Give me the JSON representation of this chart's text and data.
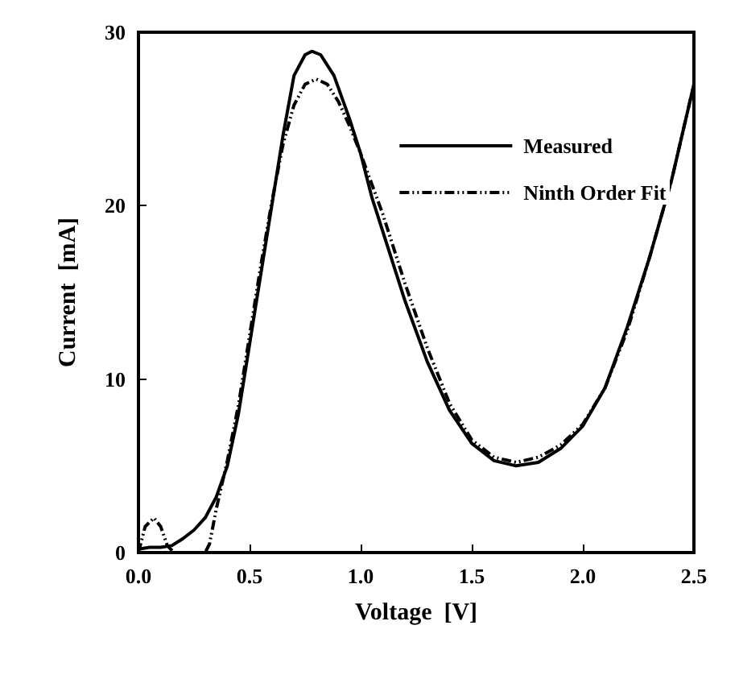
{
  "chart_data": {
    "type": "line",
    "xlabel": "Voltage  [V]",
    "ylabel": "Current  [mA]",
    "xlim": [
      0,
      2.5
    ],
    "xticks": [
      {
        "value": 0,
        "label": "0.0"
      },
      0.5,
      {
        "value": 1,
        "label": "1.0"
      },
      1.5,
      {
        "value": 2,
        "label": "2.0"
      },
      2.5
    ],
    "ylim": [
      0,
      30
    ],
    "yticks": [
      0,
      10,
      20,
      30
    ],
    "grid": false,
    "legend": "top right",
    "marker": "none",
    "series": [
      {
        "name": "Measured",
        "color": "#000000",
        "line_style": "solid",
        "x": [
          0,
          0.05,
          0.1,
          0.15,
          0.2,
          0.25,
          0.3,
          0.35,
          0.4,
          0.45,
          0.5,
          0.55,
          0.6,
          0.65,
          0.7,
          0.75,
          0.78,
          0.82,
          0.88,
          0.95,
          1.0,
          1.05,
          1.1,
          1.2,
          1.3,
          1.4,
          1.5,
          1.6,
          1.7,
          1.8,
          1.9,
          2.0,
          2.1,
          2.2,
          2.3,
          2.4,
          2.5
        ],
        "values": [
          0.2,
          0.3,
          0.3,
          0.4,
          0.8,
          1.3,
          2.0,
          3.2,
          5,
          8,
          12,
          16,
          20,
          24,
          27.5,
          28.7,
          28.9,
          28.7,
          27.5,
          25,
          23,
          20.5,
          18.5,
          14.5,
          11,
          8.2,
          6.3,
          5.3,
          5.0,
          5.2,
          6,
          7.3,
          9.5,
          13,
          17,
          21.5,
          27
        ]
      },
      {
        "name": "Ninth Order Fit",
        "color": "#000000",
        "line_style": "dashed",
        "x": [
          0,
          0.03,
          0.07,
          0.1,
          0.13,
          0.16,
          0.3,
          0.32,
          0.35,
          0.4,
          0.45,
          0.5,
          0.55,
          0.6,
          0.65,
          0.7,
          0.75,
          0.8,
          0.85,
          0.9,
          0.95,
          1.0,
          1.1,
          1.2,
          1.3,
          1.4,
          1.5,
          1.6,
          1.7,
          1.8,
          1.9,
          2.0,
          2.1,
          2.2,
          2.3,
          2.4,
          2.5
        ],
        "values": [
          0,
          1.5,
          2.0,
          1.5,
          0.4,
          0,
          0,
          0.5,
          2.5,
          5.3,
          8.5,
          12.5,
          16.5,
          20.2,
          23.5,
          25.8,
          27,
          27.3,
          27,
          26,
          24.6,
          23,
          19.5,
          15.5,
          11.8,
          8.6,
          6.5,
          5.5,
          5.2,
          5.5,
          6.2,
          7.4,
          9.5,
          12.8,
          17,
          21.5,
          27
        ]
      }
    ]
  }
}
